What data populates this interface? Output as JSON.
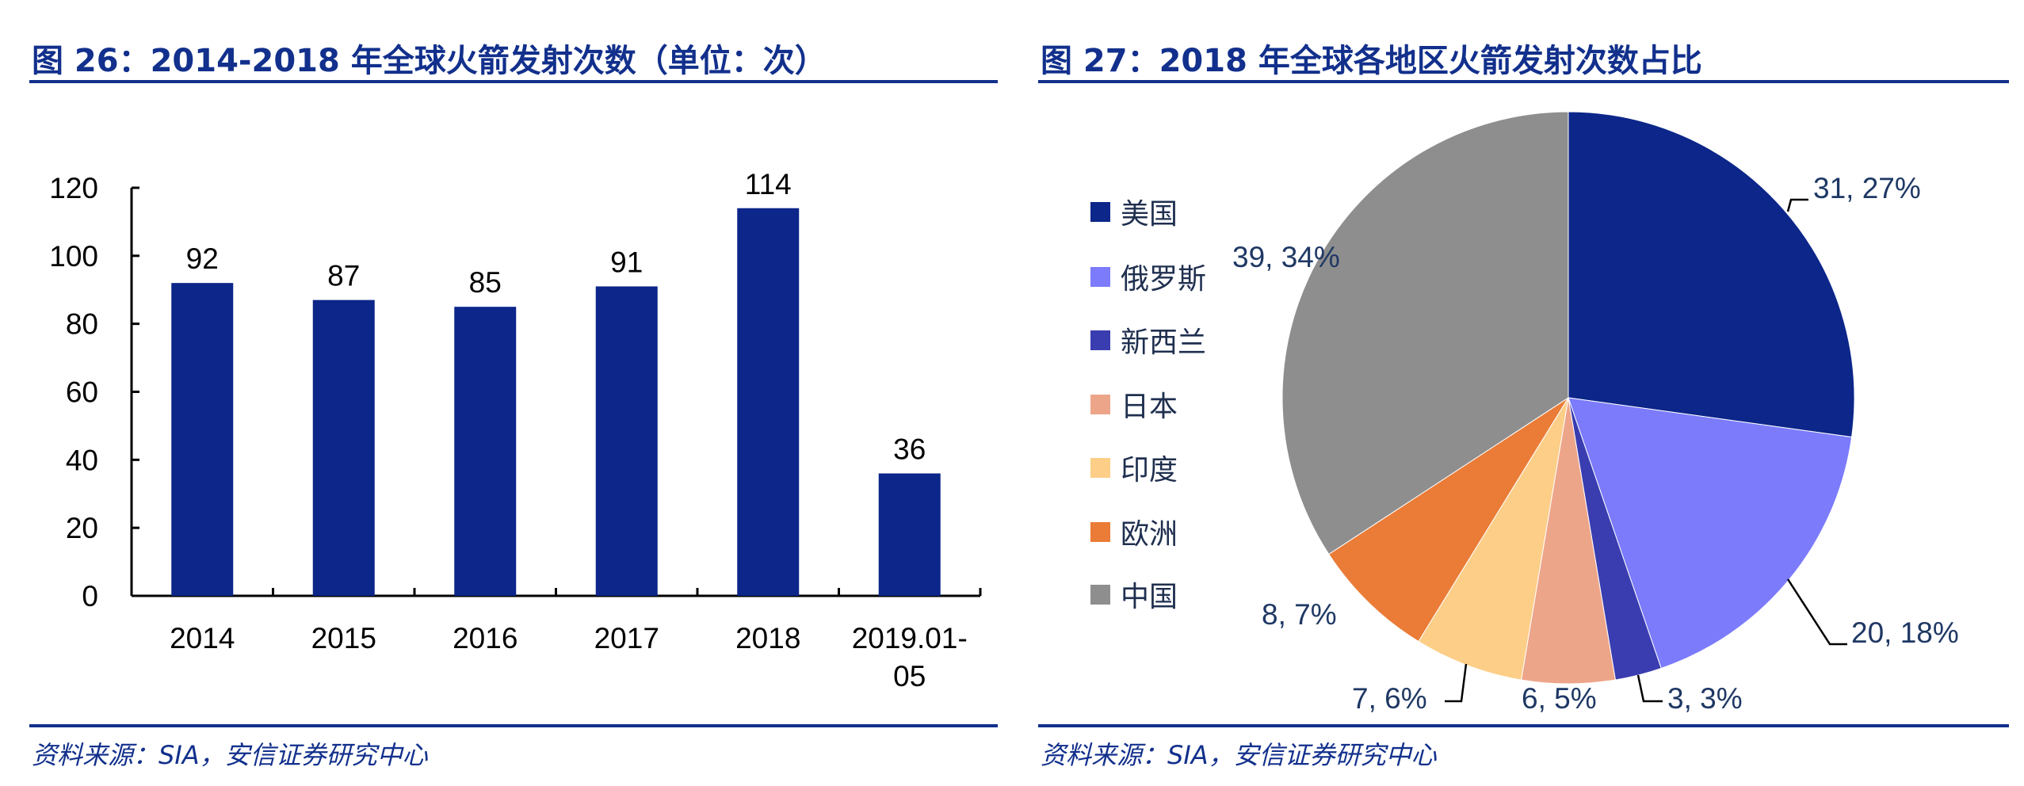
{
  "colors": {
    "title": "#12308c",
    "bar": "#0c2689",
    "label": "#1f3864"
  },
  "chart_data": [
    {
      "type": "bar",
      "title": "图 26：2014-2018 年全球火箭发射次数（单位：次）",
      "source": "资料来源：SIA，安信证券研究中心",
      "categories": [
        "2014",
        "2015",
        "2016",
        "2017",
        "2018",
        "2019.01-05"
      ],
      "category_lines": [
        [
          "2014"
        ],
        [
          "2015"
        ],
        [
          "2016"
        ],
        [
          "2017"
        ],
        [
          "2018"
        ],
        [
          "2019.01-",
          "05"
        ]
      ],
      "values": [
        92,
        87,
        85,
        91,
        114,
        36
      ],
      "data_labels": [
        "92",
        "87",
        "85",
        "91",
        "114",
        "36"
      ],
      "ylim": [
        0,
        120
      ],
      "yticks": [
        "0",
        "20",
        "40",
        "60",
        "80",
        "100",
        "120"
      ],
      "grid": false,
      "bar_color": "#0c2689"
    },
    {
      "type": "pie",
      "title": "图 27：2018 年全球各地区火箭发射次数占比",
      "source": "资料来源：SIA，安信证券研究中心",
      "legend_position": "left",
      "slices": [
        {
          "name": "美国",
          "value": 31,
          "label": "31, 27%",
          "color": "#0c2689"
        },
        {
          "name": "俄罗斯",
          "value": 20,
          "label": "20, 18%",
          "color": "#7b7bfb"
        },
        {
          "name": "新西兰",
          "value": 3,
          "label": "3, 3%",
          "color": "#3a3db0"
        },
        {
          "name": "日本",
          "value": 6,
          "label": "6, 5%",
          "color": "#eda58a"
        },
        {
          "name": "印度",
          "value": 7,
          "label": "7, 6%",
          "color": "#fcce87"
        },
        {
          "name": "欧洲",
          "value": 8,
          "label": "8, 7%",
          "color": "#ea7c37"
        },
        {
          "name": "中国",
          "value": 39,
          "label": "39, 34%",
          "color": "#8e8e8e"
        }
      ]
    }
  ]
}
